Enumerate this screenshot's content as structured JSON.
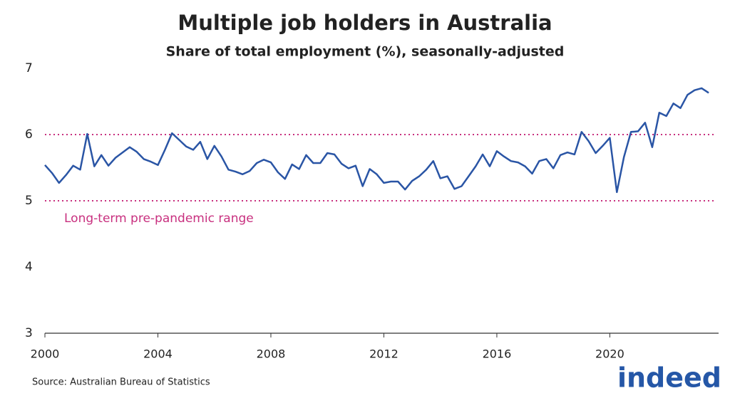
{
  "chart_data": {
    "type": "line",
    "title": "Multiple job holders in Australia",
    "subtitle": "Share of total employment (%), seasonally-adjusted",
    "x": [
      2000,
      2000.25,
      2000.5,
      2000.75,
      2001,
      2001.25,
      2001.5,
      2001.75,
      2002,
      2002.25,
      2002.5,
      2002.75,
      2003,
      2003.25,
      2003.5,
      2003.75,
      2004,
      2004.25,
      2004.5,
      2004.75,
      2005,
      2005.25,
      2005.5,
      2005.75,
      2006,
      2006.25,
      2006.5,
      2006.75,
      2007,
      2007.25,
      2007.5,
      2007.75,
      2008,
      2008.25,
      2008.5,
      2008.75,
      2009,
      2009.25,
      2009.5,
      2009.75,
      2010,
      2010.25,
      2010.5,
      2010.75,
      2011,
      2011.25,
      2011.5,
      2011.75,
      2012,
      2012.25,
      2012.5,
      2012.75,
      2013,
      2013.25,
      2013.5,
      2013.75,
      2014,
      2014.25,
      2014.5,
      2014.75,
      2015,
      2015.25,
      2015.5,
      2015.75,
      2016,
      2016.25,
      2016.5,
      2016.75,
      2017,
      2017.25,
      2017.5,
      2017.75,
      2018,
      2018.25,
      2018.5,
      2018.75,
      2019,
      2019.25,
      2019.5,
      2019.75,
      2020,
      2020.25,
      2020.5,
      2020.75,
      2021,
      2021.25,
      2021.5,
      2021.75,
      2022,
      2022.25,
      2022.5,
      2022.75,
      2023,
      2023.25,
      2023.5
    ],
    "values": [
      5.54,
      5.42,
      5.27,
      5.39,
      5.53,
      5.47,
      6.01,
      5.52,
      5.69,
      5.53,
      5.65,
      5.73,
      5.81,
      5.74,
      5.63,
      5.59,
      5.54,
      5.77,
      6.02,
      5.92,
      5.82,
      5.77,
      5.89,
      5.63,
      5.83,
      5.67,
      5.47,
      5.44,
      5.4,
      5.45,
      5.57,
      5.62,
      5.58,
      5.43,
      5.33,
      5.55,
      5.48,
      5.69,
      5.57,
      5.57,
      5.72,
      5.7,
      5.56,
      5.49,
      5.53,
      5.22,
      5.48,
      5.4,
      5.27,
      5.29,
      5.29,
      5.17,
      5.3,
      5.37,
      5.47,
      5.6,
      5.34,
      5.37,
      5.18,
      5.22,
      5.37,
      5.52,
      5.7,
      5.52,
      5.75,
      5.67,
      5.6,
      5.58,
      5.52,
      5.41,
      5.6,
      5.63,
      5.49,
      5.69,
      5.73,
      5.7,
      6.04,
      5.9,
      5.72,
      5.83,
      5.95,
      5.13,
      5.66,
      6.04,
      6.05,
      6.18,
      5.81,
      6.33,
      6.28,
      6.47,
      6.4,
      6.6,
      6.67,
      6.7,
      6.63
    ],
    "color": "#2a55a5",
    "xlim": [
      2000,
      2023.75
    ],
    "xticks": [
      2000,
      2004,
      2008,
      2012,
      2016,
      2020
    ],
    "ylim": [
      3,
      7
    ],
    "yticks": [
      3,
      4,
      5,
      6,
      7
    ],
    "reference_lines": [
      5,
      6
    ],
    "reference_color": "#c8307f",
    "annotation": "Long-term pre-pandemic range",
    "source": "Source: Australian Bureau of Statistics",
    "logo": "indeed"
  }
}
